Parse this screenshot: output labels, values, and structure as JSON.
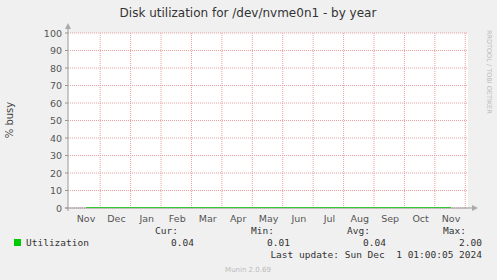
{
  "chart_data": {
    "type": "line",
    "title": "Disk utilization for /dev/nvme0n1 - by year",
    "y_label": "% busy",
    "categories": [
      "Nov",
      "Dec",
      "Jan",
      "Feb",
      "Mar",
      "Apr",
      "May",
      "Jun",
      "Jul",
      "Aug",
      "Sep",
      "Oct",
      "Nov"
    ],
    "series": [
      {
        "name": "Utilization",
        "color": "#00cc00",
        "values": [
          0.04,
          0.04,
          0.04,
          0.04,
          0.04,
          0.04,
          0.04,
          0.04,
          0.04,
          0.04,
          0.04,
          0.04,
          0.04
        ]
      }
    ],
    "ylim": [
      0,
      100
    ],
    "yticks": [
      0,
      10,
      20,
      30,
      40,
      50,
      60,
      70,
      80,
      90,
      100
    ],
    "grid": true,
    "legend": "bottom-left",
    "summary": {
      "headers": [
        "Cur:",
        "Min:",
        "Avg:",
        "Max:"
      ],
      "values": [
        0.04,
        0.01,
        0.04,
        2.0
      ],
      "value_labels": [
        "0.04",
        "0.01",
        "0.04",
        "2.00"
      ]
    },
    "last_update": "Last update: Sun Dec  1 01:00:05 2024",
    "footer": "Munin 2.0.69",
    "watermark": "RRDTOOL / TOBI OETIKER"
  }
}
